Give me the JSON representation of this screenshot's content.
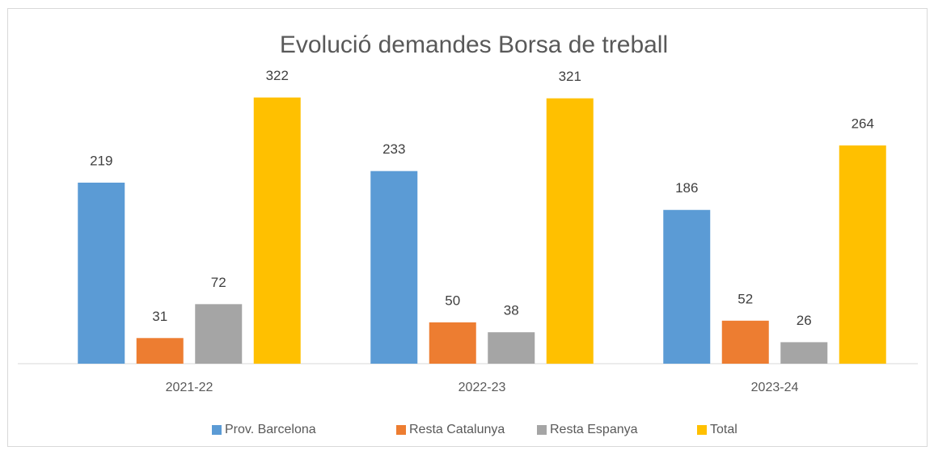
{
  "chart_data": {
    "type": "bar",
    "title": "Evolució demandes Borsa de treball",
    "categories": [
      "2021-22",
      "2022-23",
      "2023-24"
    ],
    "series": [
      {
        "name": "Prov. Barcelona",
        "color": "#5b9bd5",
        "values": [
          219,
          233,
          186
        ]
      },
      {
        "name": "Resta Catalunya",
        "color": "#ed7d31",
        "values": [
          31,
          50,
          52
        ]
      },
      {
        "name": "Resta Espanya",
        "color": "#a5a5a5",
        "values": [
          72,
          38,
          26
        ]
      },
      {
        "name": "Total",
        "color": "#ffc000",
        "values": [
          322,
          321,
          264
        ]
      }
    ],
    "ylim": [
      0,
      350
    ]
  }
}
